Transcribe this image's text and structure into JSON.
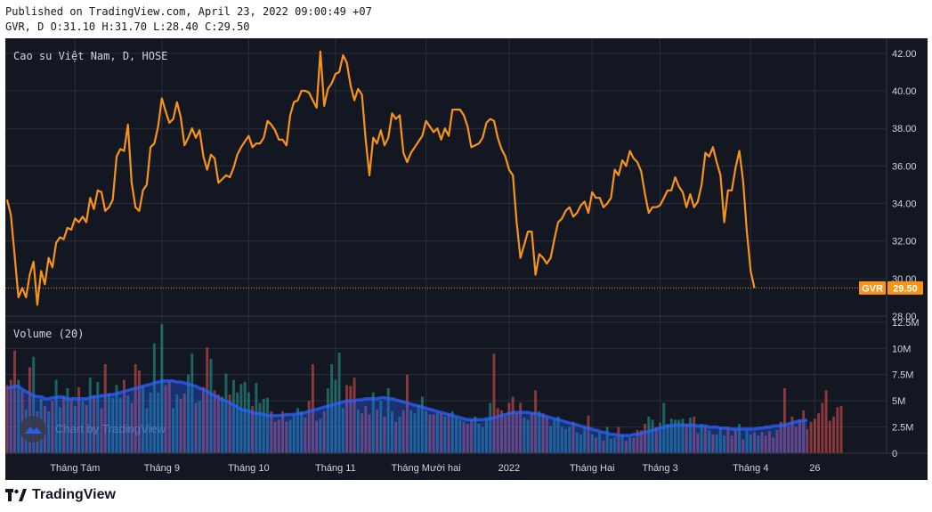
{
  "header": {
    "published_line": "Published on TradingView.com, April 23, 2022 09:00:49 +07",
    "ohlc_line": "GVR, D O:31.10 H:31.70 L:28.40 C:29.50"
  },
  "chart_title": "Cao su Việt Nam, D, HOSE",
  "volume_label": "Volume (20)",
  "watermark_text": "Chart by TradingView",
  "footer_brand": "TradingView",
  "colors": {
    "background": "#131722",
    "grid": "#2a2e39",
    "price_line": "#f7931a",
    "volume_up": "#26a69a",
    "volume_down": "#ef5350",
    "volume_ma": "#2962ff",
    "axis_text": "#d1d4dc"
  },
  "price_tag": {
    "symbol": "GVR",
    "value": "29.50"
  },
  "chart_data": [
    {
      "type": "line",
      "title": "Cao su Việt Nam, D, HOSE",
      "ylim": [
        28,
        42.8
      ],
      "y_ticks": [
        "28.00",
        "30.00",
        "32.00",
        "34.00",
        "36.00",
        "38.00",
        "40.00",
        "42.00"
      ],
      "y_tick_values": [
        28,
        30,
        32,
        34,
        36,
        38,
        40,
        42
      ],
      "x_tick_labels": [
        "Tháng Tám",
        "Tháng 9",
        "Tháng 10",
        "Tháng 11",
        "Tháng Mười hai",
        "2022",
        "Tháng Hai",
        "Tháng 3",
        "Tháng 4",
        "26"
      ],
      "x_tick_index": [
        18,
        41,
        64,
        87,
        111,
        133,
        155,
        173,
        197,
        214
      ],
      "last_value": 29.5,
      "series": [
        {
          "values": [
            34.2,
            33.4,
            31.2,
            29,
            29.5,
            29,
            30.2,
            30.9,
            28.6,
            30.4,
            29.7,
            31.1,
            30.6,
            31.9,
            32.2,
            32.1,
            32.7,
            32.6,
            33.2,
            33,
            33.3,
            33,
            34.3,
            33.7,
            34.7,
            34.6,
            33.6,
            33.8,
            34.2,
            36.5,
            36.9,
            36.8,
            38.2,
            35.1,
            33.8,
            33.6,
            34.7,
            35,
            37,
            37.2,
            38.1,
            39.6,
            38.9,
            38.3,
            38.5,
            39.4,
            38.6,
            37.1,
            37.5,
            38,
            37.5,
            37.9,
            36.5,
            35.8,
            36.6,
            36.4,
            35.1,
            35.3,
            35.5,
            35.4,
            35.9,
            36.6,
            37,
            37.3,
            37.6,
            37,
            37.2,
            37.2,
            37.5,
            38.4,
            38.2,
            37.9,
            37.4,
            37.4,
            37.1,
            38.7,
            39.4,
            39.5,
            40,
            40,
            39.9,
            39.5,
            39.1,
            42.1,
            39.2,
            40.1,
            40.4,
            40.9,
            41,
            41.9,
            41.5,
            40.3,
            39.5,
            40.1,
            39.8,
            37.4,
            35.5,
            37.5,
            37.2,
            37.9,
            37.1,
            37.5,
            38.8,
            38.5,
            38.7,
            36.7,
            36.2,
            36.7,
            37,
            37.3,
            37.6,
            38.4,
            38.1,
            37.8,
            38,
            37.4,
            38,
            37.6,
            39,
            39,
            39,
            38.7,
            38.1,
            37,
            37.1,
            37.2,
            37.5,
            38.3,
            38.5,
            38.4,
            37.5,
            36.9,
            36.5,
            35.8,
            35.5,
            33,
            31.1,
            31.8,
            32.5,
            32.5,
            30.2,
            31.3,
            31.1,
            30.8,
            31.1,
            32.1,
            33,
            33.2,
            33.6,
            33.8,
            33.3,
            33.5,
            33.9,
            34.1,
            33.5,
            34.6,
            34.3,
            34.3,
            33.8,
            34,
            34.3,
            35.8,
            35.5,
            36.3,
            36,
            36.8,
            36.4,
            36.2,
            35.7,
            34.5,
            33.5,
            33.8,
            33.8,
            33.9,
            34.3,
            34.7,
            34.7,
            35.4,
            34.9,
            34.6,
            33.8,
            34.5,
            33.8,
            34.1,
            35,
            36.7,
            36.5,
            37,
            36.2,
            35.5,
            33,
            34.7,
            34.7,
            35.9,
            36.8,
            35.2,
            32.5,
            30.4,
            29.5
          ]
        }
      ]
    },
    {
      "type": "bar",
      "title": "Volume (20)",
      "ylim": [
        0,
        13
      ],
      "y_ticks": [
        "0",
        "2.5M",
        "5M",
        "7.5M",
        "10M",
        "12.5M"
      ],
      "y_tick_values": [
        0,
        2.5,
        5,
        7.5,
        10,
        12.5
      ],
      "unit": "M",
      "series": [
        {
          "name": "Volume",
          "values": [
            6.5,
            7,
            9.8,
            7,
            6,
            4.2,
            8.2,
            9.2,
            4,
            5.2,
            4.5,
            4,
            5,
            7,
            4.4,
            5.5,
            6.2,
            5.1,
            4.5,
            6.3,
            5,
            4.6,
            7.2,
            5.5,
            6.8,
            4.3,
            8.5,
            5.7,
            5.3,
            6.5,
            5.3,
            7,
            5.5,
            4.8,
            8.5,
            7.9,
            6.5,
            4.3,
            5.8,
            10.5,
            5.8,
            12.3,
            6.5,
            6.8,
            4.3,
            5.6,
            5.2,
            5.7,
            7.5,
            9.5,
            4.8,
            5,
            6.3,
            10.1,
            9,
            6,
            5.6,
            5.4,
            7.6,
            5.6,
            7,
            5.8,
            6.6,
            6.8,
            5.8,
            4.5,
            6.7,
            4.8,
            5.2,
            5.3,
            4,
            3,
            3.2,
            4,
            3,
            3.2,
            3.6,
            4.3,
            4,
            3.4,
            5,
            8.5,
            3.1,
            3.3,
            4,
            6.2,
            8.5,
            7,
            9.6,
            4.3,
            6.5,
            6.4,
            7.2,
            4.2,
            3.8,
            4.5,
            3.7,
            5.8,
            4.2,
            5,
            3.5,
            6.2,
            4,
            3,
            3.5,
            4.1,
            7.5,
            4.1,
            3.8,
            4.6,
            5.4,
            4,
            3.7,
            3.7,
            3.9,
            3.8,
            3.5,
            3.8,
            4,
            3.4,
            3.2,
            3,
            2.8,
            3.2,
            3.5,
            2.8,
            2.5,
            3.2,
            4.8,
            9.5,
            4.3,
            4.1,
            3.5,
            4.8,
            5.4,
            3.8,
            4.8,
            3.4,
            3.2,
            3.9,
            6,
            4,
            3.8,
            3.4,
            2.6,
            3.2,
            3.5,
            2.5,
            2.3,
            2.5,
            3,
            2,
            1.8,
            2.5,
            3.6,
            1.8,
            1.5,
            2,
            1.2,
            2.5,
            1.4,
            1.5,
            2.5,
            1.8,
            1.2,
            1.5,
            1.5,
            2.2,
            2.2,
            2.8,
            3.5,
            3.2,
            2.5,
            2.9,
            4.8,
            2.8,
            3.3,
            3.2,
            3.2,
            3.3,
            2.8,
            3.4,
            3.5,
            1.9,
            2.8,
            2.6,
            2.2,
            1.8,
            1.8,
            2.5,
            1.7,
            2.4,
            1.7,
            2.3,
            2.8,
            1.3,
            2.2,
            1.8,
            2,
            1.7,
            2,
            1.7,
            2.1,
            1.5,
            2.2,
            3,
            6.2,
            2.6,
            3.5,
            2.5,
            3.2,
            4.1,
            2.3,
            3,
            3.3,
            3.8,
            4.8,
            6,
            3.1,
            3.5,
            4.4,
            4.5
          ],
          "direction": [
            "down",
            "down",
            "down",
            "up",
            "down",
            "up",
            "down",
            "up",
            "down",
            "up",
            "down",
            "up",
            "down",
            "up",
            "up",
            "down",
            "up",
            "down",
            "up",
            "down",
            "up",
            "down",
            "up",
            "down",
            "up",
            "down",
            "down",
            "up",
            "up",
            "up",
            "up",
            "down",
            "up",
            "down",
            "down",
            "down",
            "up",
            "up",
            "up",
            "up",
            "up",
            "up",
            "down",
            "down",
            "up",
            "up",
            "down",
            "down",
            "up",
            "up",
            "down",
            "up",
            "down",
            "down",
            "up",
            "down",
            "down",
            "up",
            "up",
            "down",
            "up",
            "up",
            "up",
            "up",
            "up",
            "down",
            "up",
            "up",
            "up",
            "up",
            "down",
            "down",
            "down",
            "down",
            "down",
            "up",
            "up",
            "up",
            "up",
            "down",
            "down",
            "down",
            "down",
            "up",
            "down",
            "up",
            "up",
            "up",
            "up",
            "up",
            "down",
            "down",
            "down",
            "up",
            "down",
            "down",
            "down",
            "up",
            "down",
            "up",
            "down",
            "up",
            "up",
            "down",
            "up",
            "down",
            "down",
            "up",
            "up",
            "up",
            "up",
            "up",
            "down",
            "down",
            "up",
            "down",
            "up",
            "down",
            "up",
            "up",
            "up",
            "down",
            "down",
            "down",
            "up",
            "up",
            "up",
            "up",
            "up",
            "down",
            "down",
            "down",
            "down",
            "down",
            "down",
            "down",
            "down",
            "up",
            "up",
            "down",
            "down",
            "up",
            "down",
            "down",
            "up",
            "up",
            "up",
            "up",
            "up",
            "up",
            "down",
            "up",
            "up",
            "up",
            "down",
            "up",
            "down",
            "up",
            "down",
            "up",
            "up",
            "up",
            "down",
            "up",
            "down",
            "up",
            "down",
            "down",
            "down",
            "down",
            "up",
            "up",
            "down",
            "up",
            "up",
            "up",
            "up",
            "up",
            "up",
            "up",
            "down",
            "up",
            "down",
            "down",
            "up",
            "down",
            "up",
            "down",
            "up",
            "up",
            "up",
            "down",
            "down",
            "down",
            "up",
            "down",
            "up",
            "up",
            "down",
            "up",
            "down",
            "down",
            "down",
            "down",
            "down",
            "down",
            "down"
          ]
        },
        {
          "name": "MA 20",
          "values": [
            6.2,
            6.3,
            6.4,
            6.4,
            6.1,
            5.9,
            5.7,
            5.5,
            5.4,
            5.4,
            5.2,
            5.2,
            5.3,
            5.3,
            5.4,
            5.3,
            5.2,
            5.2,
            5.2,
            5.2,
            5.2,
            5.2,
            5.3,
            5.4,
            5.4,
            5.5,
            5.5,
            5.6,
            5.6,
            5.7,
            5.8,
            5.9,
            6,
            6.1,
            6.2,
            6.3,
            6.4,
            6.5,
            6.6,
            6.7,
            6.8,
            6.9,
            6.9,
            6.9,
            6.9,
            6.8,
            6.8,
            6.7,
            6.6,
            6.5,
            6.4,
            6.2,
            6.1,
            5.9,
            5.7,
            5.5,
            5.3,
            5.1,
            5,
            4.8,
            4.6,
            4.4,
            4.2,
            4.1,
            4,
            3.9,
            3.8,
            3.8,
            3.7,
            3.6,
            3.6,
            3.6,
            3.6,
            3.6,
            3.7,
            3.7,
            3.7,
            3.8,
            3.8,
            3.9,
            4,
            4.1,
            4.2,
            4.3,
            4.4,
            4.5,
            4.6,
            4.7,
            4.8,
            4.9,
            5,
            5,
            5,
            5.1,
            5.1,
            5.2,
            5.2,
            5.2,
            5.2,
            5.3,
            5.3,
            5.2,
            5.2,
            5.1,
            5,
            4.9,
            4.8,
            4.7,
            4.6,
            4.5,
            4.4,
            4.3,
            4.2,
            4.1,
            4,
            3.9,
            3.8,
            3.7,
            3.6,
            3.5,
            3.4,
            3.3,
            3.2,
            3.2,
            3.2,
            3.2,
            3.2,
            3.3,
            3.3,
            3.4,
            3.5,
            3.6,
            3.7,
            3.8,
            3.9,
            3.9,
            3.9,
            3.9,
            3.9,
            3.8,
            3.8,
            3.7,
            3.6,
            3.5,
            3.4,
            3.3,
            3.2,
            3.1,
            3,
            2.9,
            2.8,
            2.7,
            2.6,
            2.5,
            2.4,
            2.3,
            2.2,
            2.1,
            2,
            1.9,
            1.8,
            1.8,
            1.7,
            1.7,
            1.7,
            1.7,
            1.8,
            1.8,
            1.9,
            2,
            2.1,
            2.2,
            2.3,
            2.4,
            2.5,
            2.6,
            2.6,
            2.7,
            2.7,
            2.7,
            2.7,
            2.7,
            2.7,
            2.6,
            2.6,
            2.6,
            2.5,
            2.5,
            2.5,
            2.4,
            2.4,
            2.4,
            2.3,
            2.3,
            2.3,
            2.3,
            2.3,
            2.3,
            2.3,
            2.4,
            2.4,
            2.5,
            2.5,
            2.6,
            2.6,
            2.7,
            2.7,
            2.8,
            2.9,
            3,
            3.1,
            3.1,
            3.2
          ]
        }
      ]
    }
  ]
}
